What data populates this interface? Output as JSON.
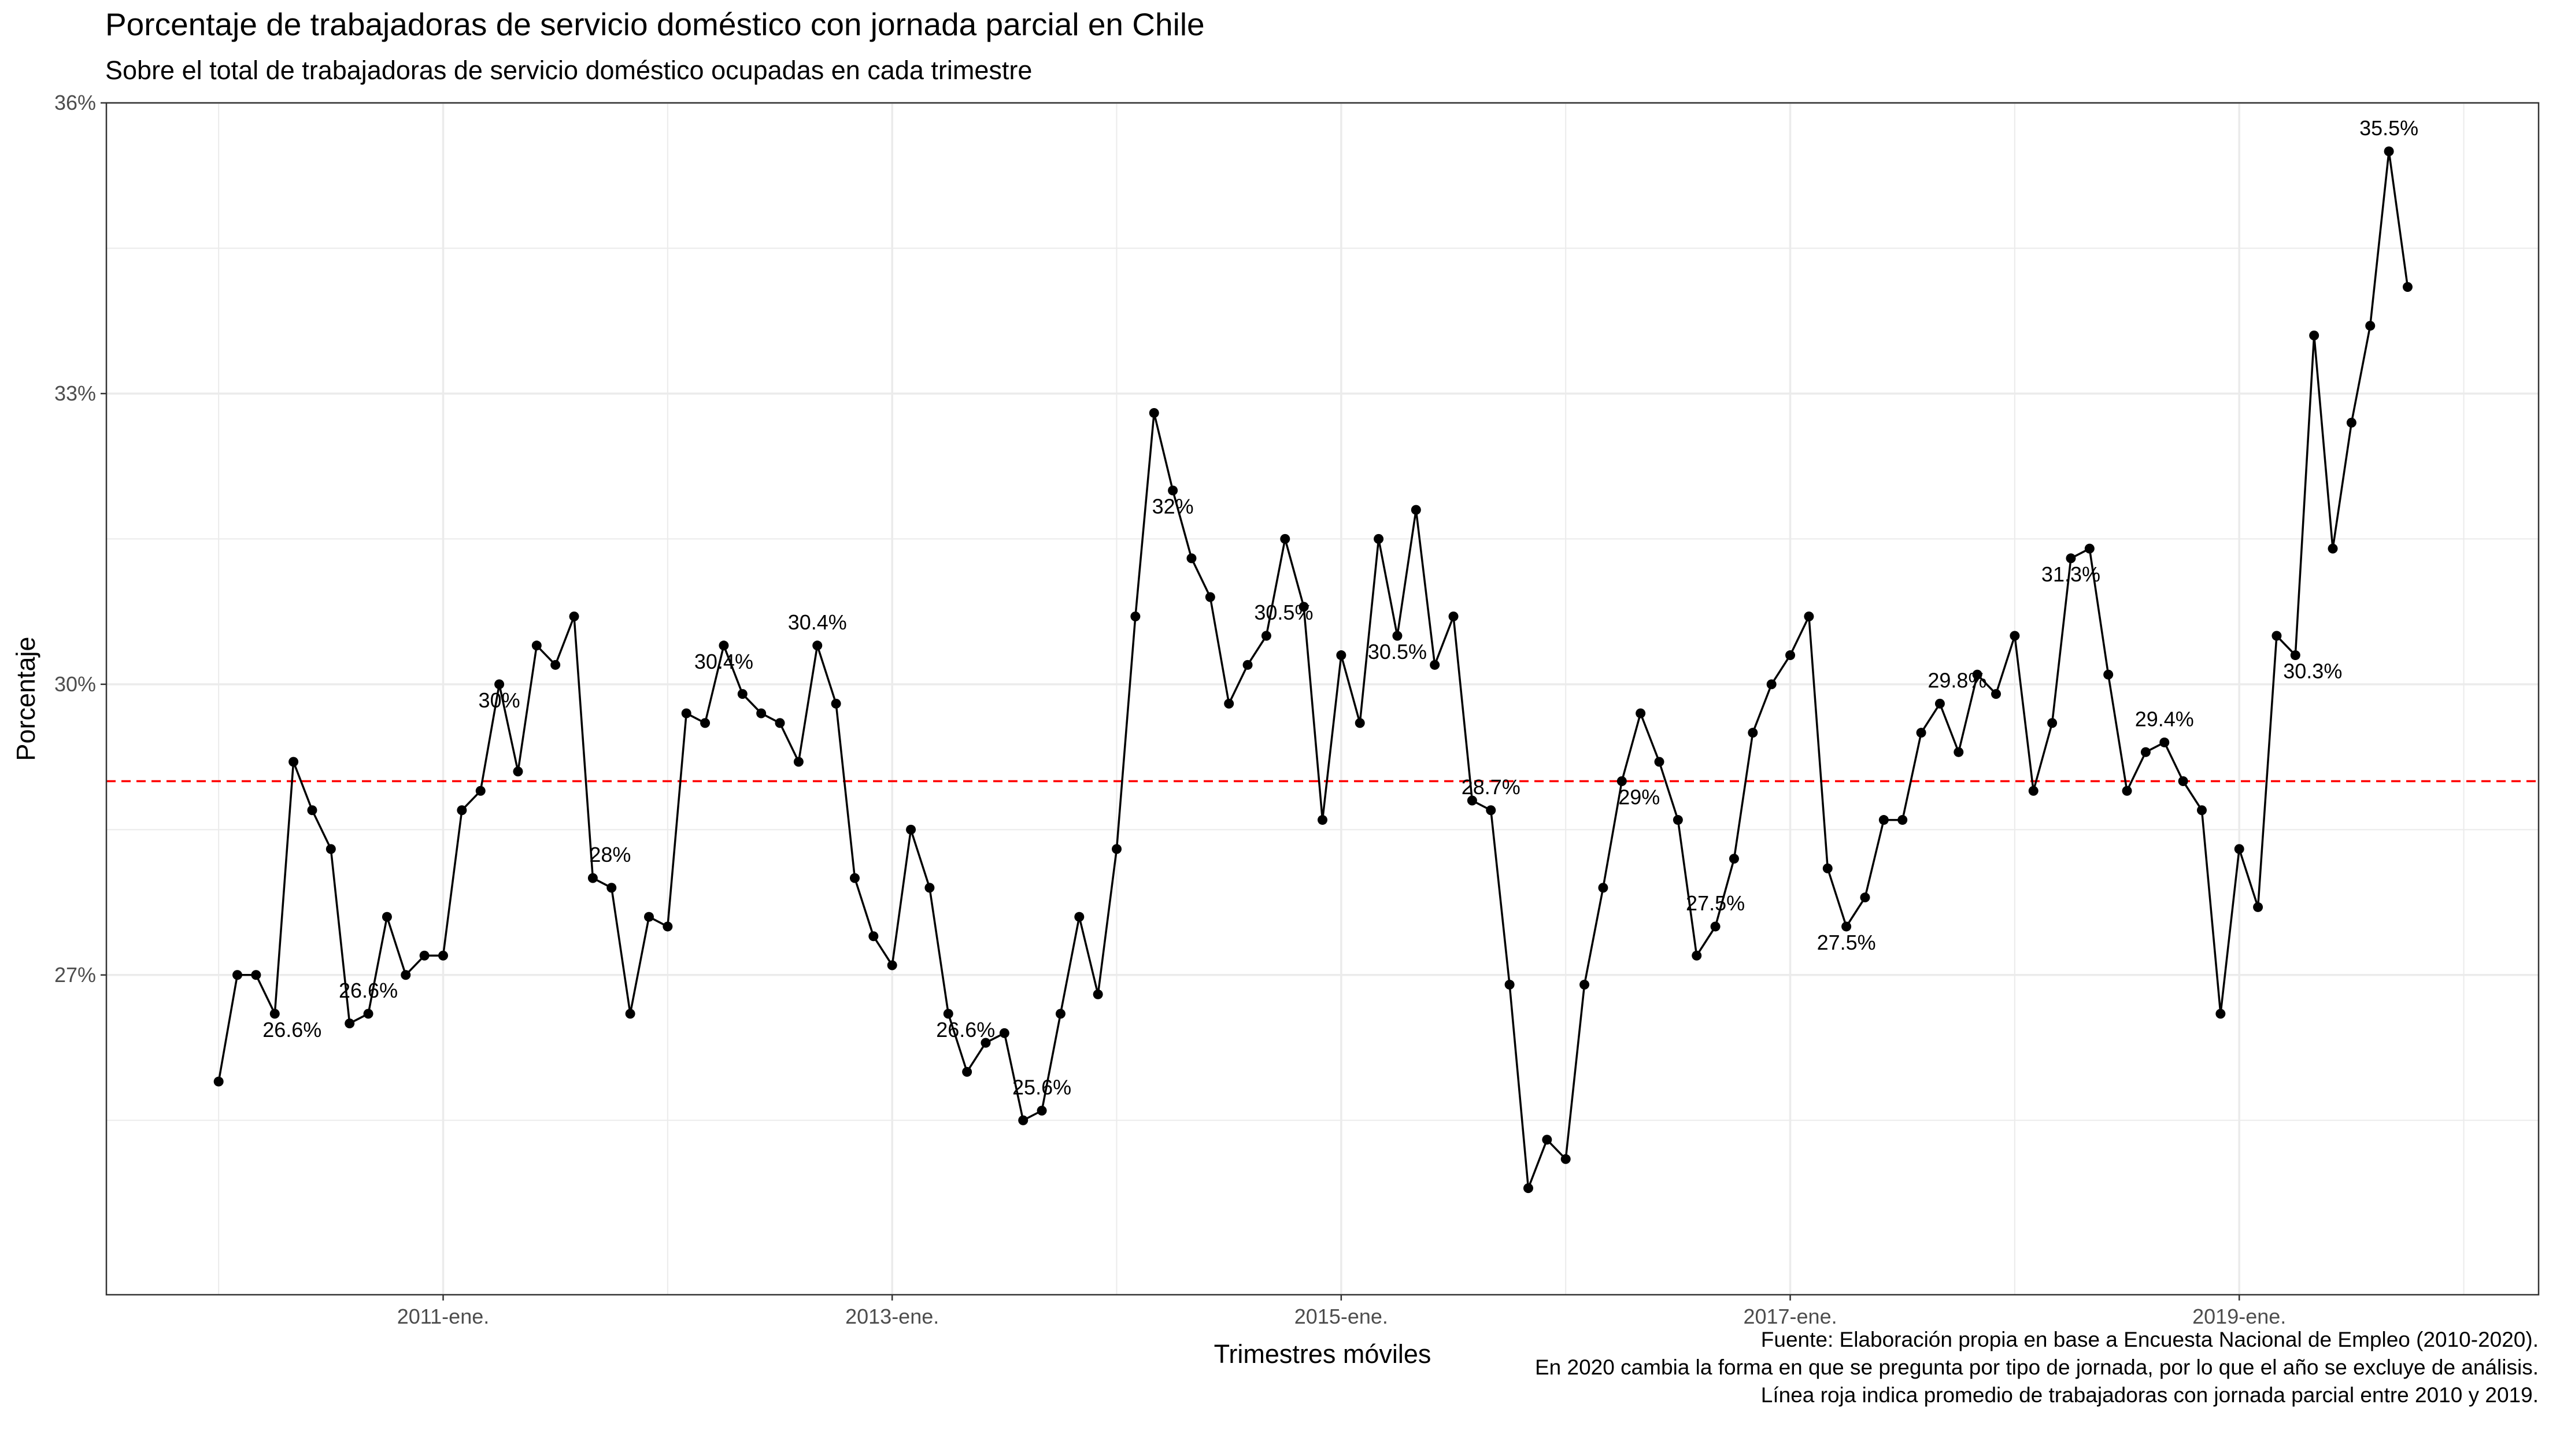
{
  "chart_data": {
    "type": "line",
    "title": "Porcentaje de trabajadoras de servicio doméstico con jornada parcial en Chile",
    "subtitle": "Sobre el total de trabajadoras de servicio doméstico ocupadas en cada trimestre",
    "xlabel": "Trimestres móviles",
    "ylabel": "Porcentaje",
    "x_ticks": [
      "2011-ene.",
      "2013-ene.",
      "2015-ene.",
      "2017-ene.",
      "2019-ene."
    ],
    "x_tick_positions": [
      12,
      36,
      60,
      84,
      108
    ],
    "y_ticks": [
      "27%",
      "30%",
      "33%",
      "36%"
    ],
    "y_tick_values": [
      27,
      30,
      33,
      36
    ],
    "ylim": [
      23.7,
      36.0
    ],
    "xlim": [
      -6,
      124
    ],
    "grid": true,
    "reference_line": {
      "value": 29.0,
      "color": "#ff0000",
      "style": "dashed"
    },
    "series": [
      {
        "values": [
          25.9,
          27.0,
          27.0,
          26.6,
          29.2,
          28.7,
          28.3,
          26.5,
          26.6,
          27.6,
          27.0,
          27.2,
          27.2,
          28.7,
          28.9,
          30.0,
          29.1,
          30.4,
          30.2,
          30.7,
          28.0,
          27.9,
          26.6,
          27.6,
          27.5,
          29.7,
          29.6,
          30.4,
          29.9,
          29.7,
          29.6,
          29.2,
          30.4,
          29.8,
          28.0,
          27.4,
          27.1,
          28.5,
          27.9,
          26.6,
          26.0,
          26.3,
          26.4,
          25.5,
          25.6,
          26.6,
          27.6,
          26.8,
          28.3,
          30.7,
          32.8,
          32.0,
          31.3,
          30.9,
          29.8,
          30.2,
          30.5,
          31.5,
          30.8,
          28.6,
          30.3,
          29.6,
          31.5,
          30.5,
          31.8,
          30.2,
          30.7,
          28.8,
          28.7,
          26.9,
          24.8,
          25.3,
          25.1,
          26.9,
          27.9,
          29.0,
          29.7,
          29.2,
          28.6,
          27.2,
          27.5,
          28.2,
          29.5,
          30.0,
          30.3,
          30.7,
          28.1,
          27.5,
          27.8,
          28.6,
          28.6,
          29.5,
          29.8,
          29.3,
          30.1,
          29.9,
          30.5,
          28.9,
          29.6,
          31.3,
          31.4,
          30.1,
          28.9,
          29.3,
          29.4,
          29.0,
          28.7,
          26.6,
          28.3,
          27.7,
          30.5,
          30.3,
          33.6,
          31.4,
          32.7,
          33.7,
          35.5,
          34.1
        ]
      }
    ],
    "annotations": [
      {
        "text": "26.6%",
        "x": 3
      },
      {
        "text": "26.6%",
        "x": 8
      },
      {
        "text": "30%",
        "x": 15
      },
      {
        "text": "28%",
        "x": 20
      },
      {
        "text": "30.4%",
        "x": 27
      },
      {
        "text": "30.4%",
        "x": 32
      },
      {
        "text": "26.6%",
        "x": 39
      },
      {
        "text": "25.6%",
        "x": 44
      },
      {
        "text": "32%",
        "x": 51
      },
      {
        "text": "30.5%",
        "x": 56
      },
      {
        "text": "30.5%",
        "x": 63
      },
      {
        "text": "28.7%",
        "x": 68
      },
      {
        "text": "29%",
        "x": 75
      },
      {
        "text": "27.5%",
        "x": 80
      },
      {
        "text": "27.5%",
        "x": 87
      },
      {
        "text": "29.8%",
        "x": 92
      },
      {
        "text": "31.3%",
        "x": 99
      },
      {
        "text": "29.4%",
        "x": 104
      },
      {
        "text": "30.3%",
        "x": 111
      },
      {
        "text": "35.5%",
        "x": 116
      }
    ]
  },
  "caption": [
    "Fuente: Elaboración propia en base a Encuesta Nacional de Empleo (2010-2020).",
    "En 2020 cambia la forma en que se pregunta por tipo de jornada, por lo que el año se excluye de análisis.",
    "Línea roja indica promedio de trabajadoras con jornada parcial entre 2010 y 2019."
  ],
  "colors": {
    "line": "#000000",
    "reference": "#ff0000",
    "grid": "#ebebeb",
    "border": "#333333"
  }
}
